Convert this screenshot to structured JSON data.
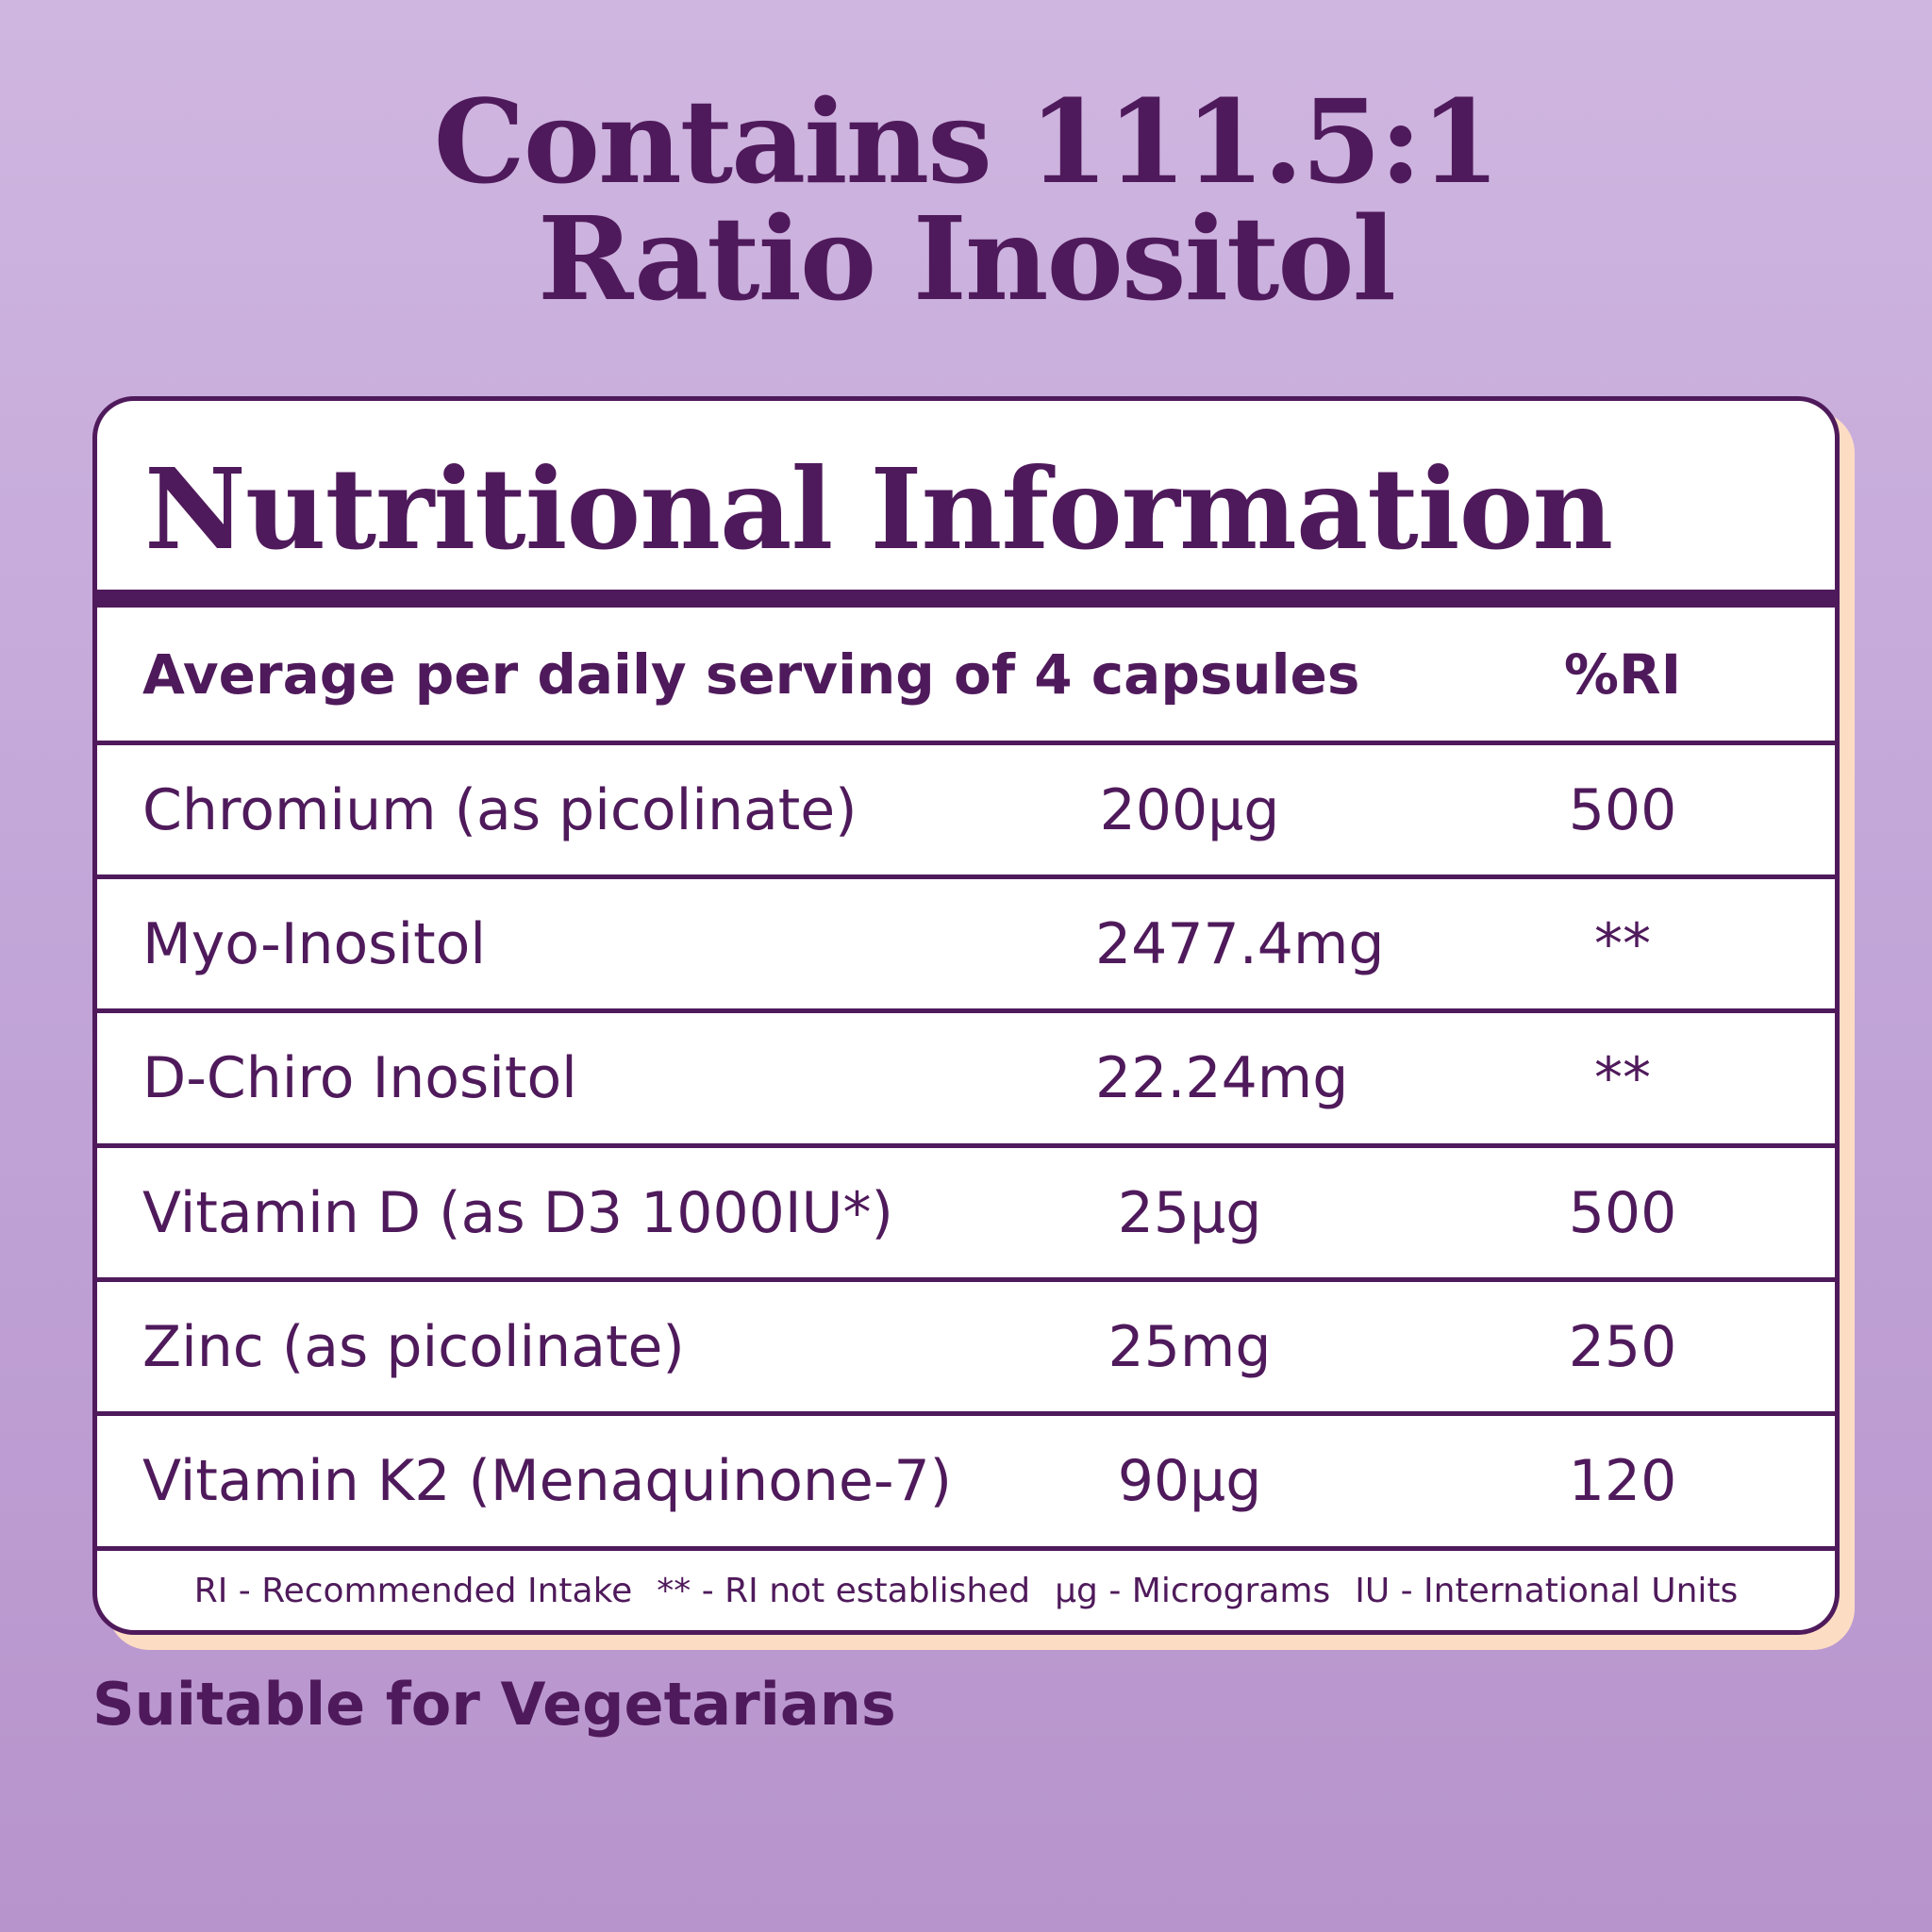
{
  "title": {
    "line1": "Contains 111.5:1",
    "line2": "Ratio Inositol"
  },
  "card": {
    "heading": "Nutritional Information",
    "header": {
      "label": "Average per daily serving of 4 capsules",
      "ri": "%RI"
    },
    "rows": [
      {
        "name": "Chromium (as picolinate)",
        "amount": "200µg",
        "ri": "500"
      },
      {
        "name": "Myo-Inositol",
        "amount": "2477.4mg",
        "ri": "**"
      },
      {
        "name": "D-Chiro Inositol",
        "amount": "22.24mg",
        "ri": "**"
      },
      {
        "name": "Vitamin D (as D3 1000IU*)",
        "amount": "25µg",
        "ri": "500"
      },
      {
        "name": "Zinc (as picolinate)",
        "amount": "25mg",
        "ri": "250"
      },
      {
        "name": "Vitamin K2 (Menaquinone-7)",
        "amount": "90µg",
        "ri": "120"
      }
    ],
    "footer": [
      "RI - Recommended Intake",
      "** - RI not established",
      "µg - Micrograms",
      "IU - International Units"
    ]
  },
  "note": "Suitable for Vegetarians",
  "colors": {
    "primary": "#4f1a5b",
    "shadow": "#fddcc4",
    "background": "#c2a5d8"
  }
}
